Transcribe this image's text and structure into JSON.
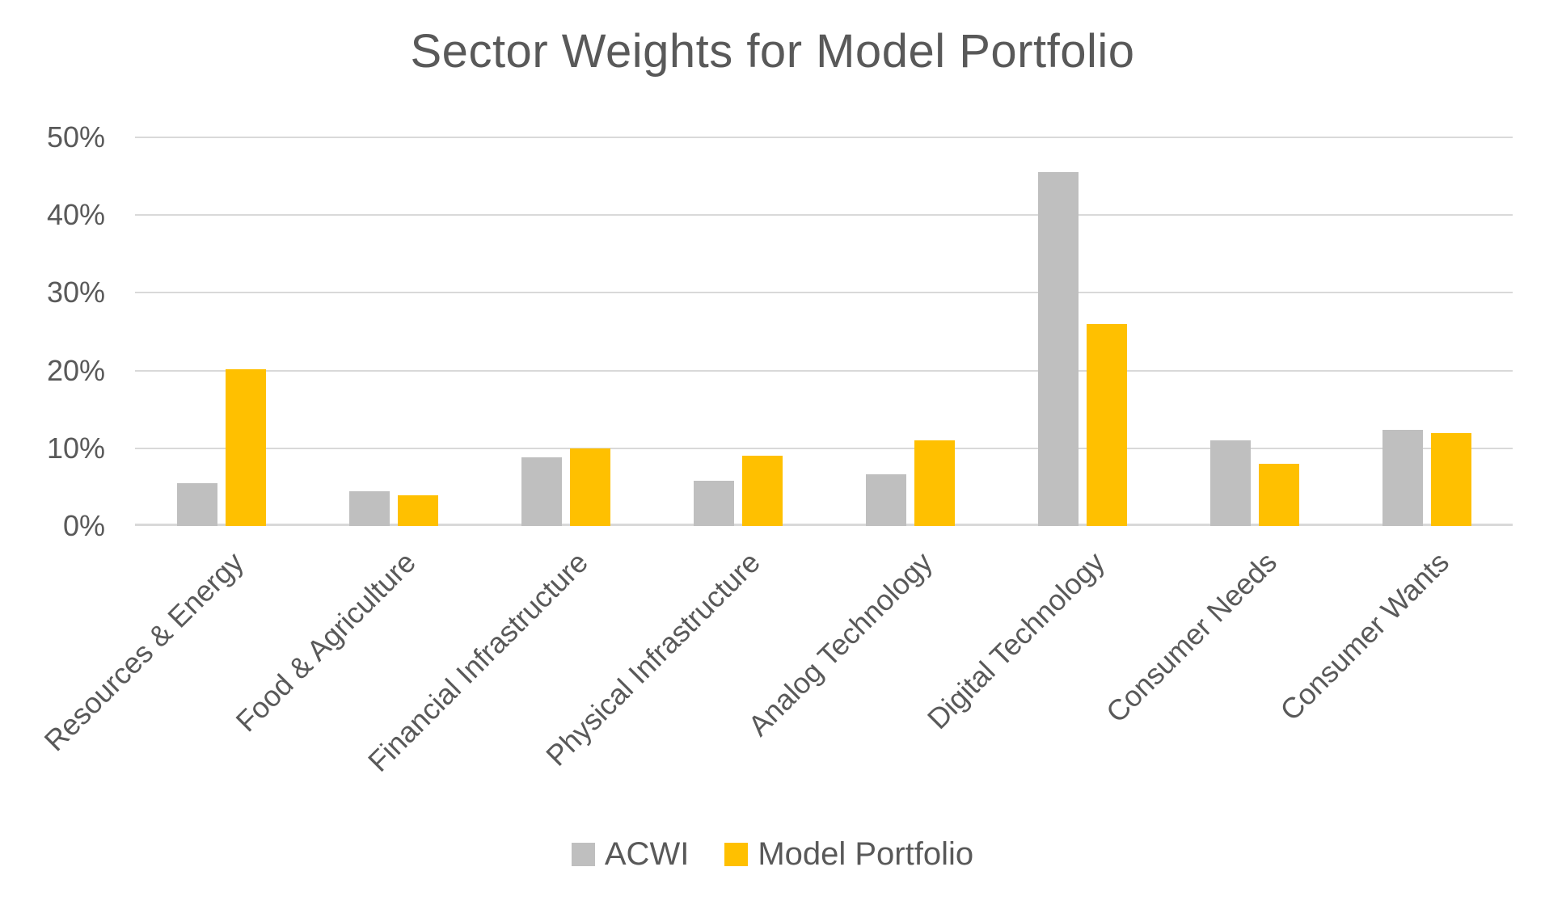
{
  "chart_data": {
    "type": "bar",
    "title": "Sector Weights for Model Portfolio",
    "categories": [
      "Resources & Energy",
      "Food & Agriculture",
      "Financial Infrastructure",
      "Physical Infrastructure",
      "Analog Technology",
      "Digital Technology",
      "Consumer Needs",
      "Consumer Wants"
    ],
    "series": [
      {
        "name": "ACWI",
        "color": "#bfbfbf",
        "values": [
          5.5,
          4.5,
          8.8,
          5.8,
          6.7,
          45.5,
          11.0,
          12.4
        ]
      },
      {
        "name": "Model Portfolio",
        "color": "#ffc000",
        "values": [
          20.2,
          4.0,
          10.0,
          9.0,
          11.0,
          26.0,
          8.0,
          12.0
        ]
      }
    ],
    "xlabel": "",
    "ylabel": "",
    "ylim": [
      0,
      50
    ],
    "y_ticks": [
      "0%",
      "10%",
      "20%",
      "30%",
      "40%",
      "50%"
    ],
    "grid": true,
    "legend_position": "bottom",
    "x_label_rotation_deg": -45,
    "colors": {
      "gridline": "#d9d9d9",
      "axis_line": "#d9d9d9",
      "text": "#595959",
      "background": "#ffffff"
    }
  }
}
